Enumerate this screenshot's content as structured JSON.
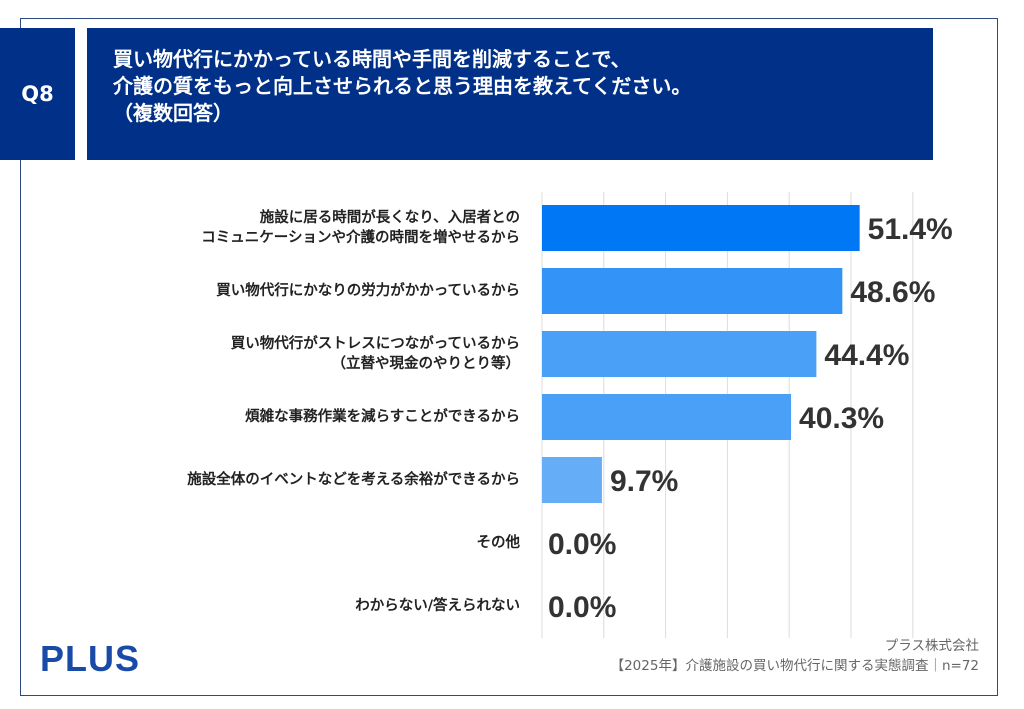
{
  "header": {
    "question_number": "Q8",
    "title_lines": [
      "買い物代行にかかっている時間や手間を削減することで、",
      "介護の質をもっと向上させられると思う理由を教えてください。",
      "（複数回答）"
    ]
  },
  "chart_data": {
    "type": "bar",
    "orientation": "horizontal",
    "categories": [
      [
        "施設に居る時間が長くなり、入居者との",
        "コミュニケーションや介護の時間を増やせるから"
      ],
      [
        "買い物代行にかなりの労力がかかっているから"
      ],
      [
        "買い物代行がストレスにつながっているから",
        "（立替や現金のやりとり等）"
      ],
      [
        "煩雑な事務作業を減らすことができるから"
      ],
      [
        "施設全体のイベントなどを考える余裕ができるから"
      ],
      [
        "その他"
      ],
      [
        "わからない/答えられない"
      ]
    ],
    "values": [
      51.4,
      48.6,
      44.4,
      40.3,
      9.7,
      0.0,
      0.0
    ],
    "labels": [
      "51.4%",
      "48.6%",
      "44.4%",
      "40.3%",
      "9.7%",
      "0.0%",
      "0.0%"
    ],
    "colors": [
      "#0078f5",
      "#3393f7",
      "#4a9ff7",
      "#4a9ff7",
      "#66adf8",
      "#66adf8",
      "#66adf8"
    ],
    "xlim": [
      0,
      60
    ],
    "grid": true,
    "unit": "%"
  },
  "footer": {
    "logo": "PLUS",
    "company": "プラス株式会社",
    "survey": "【2025年】介護施設の買い物代行に関する実態調査｜n=72"
  }
}
